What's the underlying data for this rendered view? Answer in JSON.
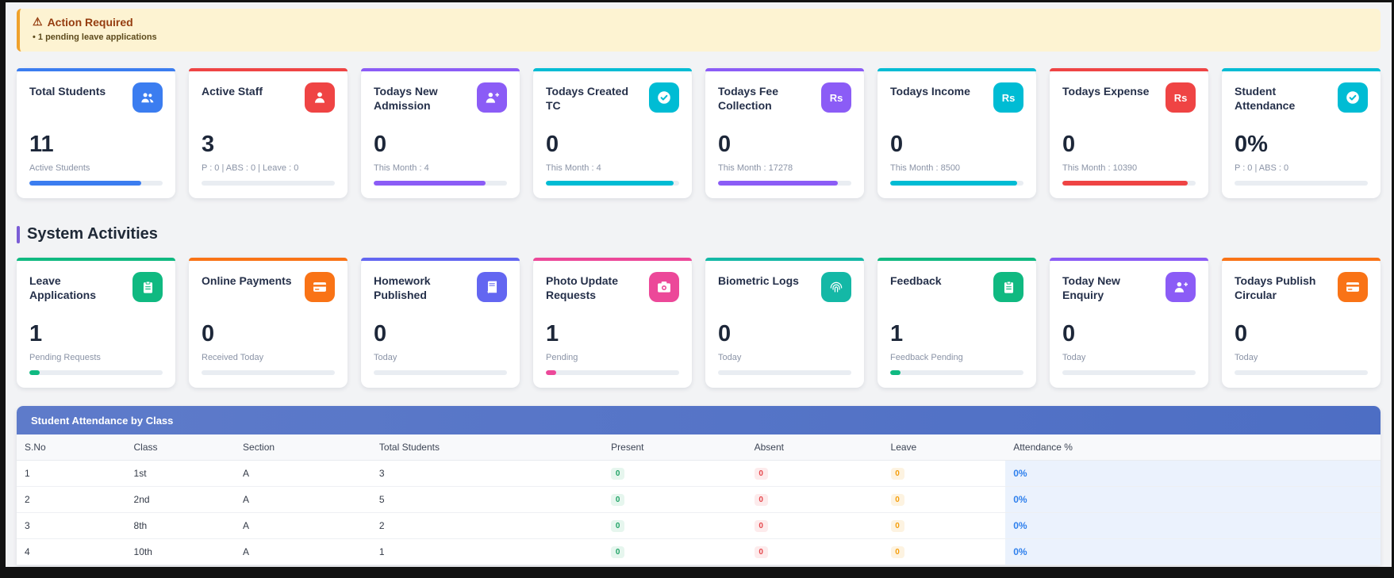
{
  "alert": {
    "icon": "warning-icon",
    "icon_glyph": "⚠",
    "title": "Action Required",
    "item": "• 1 pending leave applications"
  },
  "section_title": "System Activities",
  "stat_cards": [
    {
      "title": "Total Students",
      "icon": "users-icon",
      "color": "#3b7df0",
      "value": "11",
      "subtitle": "Active Students",
      "progress": 84
    },
    {
      "title": "Active Staff",
      "icon": "user-icon",
      "color": "#ef4444",
      "value": "3",
      "subtitle": "P : 0 | ABS : 0 | Leave : 0",
      "progress": 0
    },
    {
      "title": "Todays New Admission",
      "icon": "user-plus-icon",
      "color": "#8b5cf6",
      "value": "0",
      "subtitle": "This Month : 4",
      "progress": 84
    },
    {
      "title": "Todays Created TC",
      "icon": "check-circle-icon",
      "color": "#00bcd4",
      "value": "0",
      "subtitle": "This Month : 4",
      "progress": 96
    },
    {
      "title": "Todays Fee Collection",
      "icon": "rs-icon",
      "color": "#8b5cf6",
      "value": "0",
      "subtitle": "This Month : 17278",
      "progress": 90
    },
    {
      "title": "Todays Income",
      "icon": "rs-icon",
      "color": "#00bcd4",
      "value": "0",
      "subtitle": "This Month : 8500",
      "progress": 95
    },
    {
      "title": "Todays Expense",
      "icon": "rs-icon",
      "color": "#ef4444",
      "value": "0",
      "subtitle": "This Month : 10390",
      "progress": 94
    },
    {
      "title": "Student Attendance",
      "icon": "check-circle-icon",
      "color": "#00bcd4",
      "value": "0%",
      "subtitle": "P : 0 | ABS : 0",
      "progress": 0
    }
  ],
  "activity_cards": [
    {
      "title": "Leave Applications",
      "icon": "clipboard-icon",
      "color": "#10b981",
      "value": "1",
      "subtitle": "Pending Requests",
      "progress": 8
    },
    {
      "title": "Online Payments",
      "icon": "credit-card-icon",
      "color": "#f97316",
      "value": "0",
      "subtitle": "Received Today",
      "progress": 0
    },
    {
      "title": "Homework Published",
      "icon": "book-icon",
      "color": "#6366f1",
      "value": "0",
      "subtitle": "Today",
      "progress": 0
    },
    {
      "title": "Photo Update Requests",
      "icon": "camera-icon",
      "color": "#ec4899",
      "value": "1",
      "subtitle": "Pending",
      "progress": 8
    },
    {
      "title": "Biometric Logs",
      "icon": "fingerprint-icon",
      "color": "#14b8a6",
      "value": "0",
      "subtitle": "Today",
      "progress": 0
    },
    {
      "title": "Feedback",
      "icon": "clipboard-icon",
      "color": "#10b981",
      "value": "1",
      "subtitle": "Feedback Pending",
      "progress": 8
    },
    {
      "title": "Today New Enquiry",
      "icon": "user-plus-icon",
      "color": "#8b5cf6",
      "value": "0",
      "subtitle": "Today",
      "progress": 0
    },
    {
      "title": "Todays Publish Circular",
      "icon": "credit-card-icon",
      "color": "#f97316",
      "value": "0",
      "subtitle": "Today",
      "progress": 0
    }
  ],
  "table": {
    "title": "Student Attendance by Class",
    "columns": [
      "S.No",
      "Class",
      "Section",
      "Total Students",
      "Present",
      "Absent",
      "Leave",
      "Attendance %"
    ],
    "column_widths": [
      "8%",
      "8%",
      "10%",
      "17%",
      "10.5%",
      "10%",
      "9%",
      "27.5%"
    ],
    "badge_colors": {
      "present": "#21a366",
      "absent": "#e5484d",
      "leave": "#f59e0b",
      "attendance": "#2f80ed"
    },
    "rows": [
      {
        "sno": "1",
        "class": "1st",
        "section": "A",
        "total": "3",
        "present": "0",
        "absent": "0",
        "leave": "0",
        "attendance": "0%"
      },
      {
        "sno": "2",
        "class": "2nd",
        "section": "A",
        "total": "5",
        "present": "0",
        "absent": "0",
        "leave": "0",
        "attendance": "0%"
      },
      {
        "sno": "3",
        "class": "8th",
        "section": "A",
        "total": "2",
        "present": "0",
        "absent": "0",
        "leave": "0",
        "attendance": "0%"
      },
      {
        "sno": "4",
        "class": "10th",
        "section": "A",
        "total": "1",
        "present": "0",
        "absent": "0",
        "leave": "0",
        "attendance": "0%"
      }
    ]
  }
}
